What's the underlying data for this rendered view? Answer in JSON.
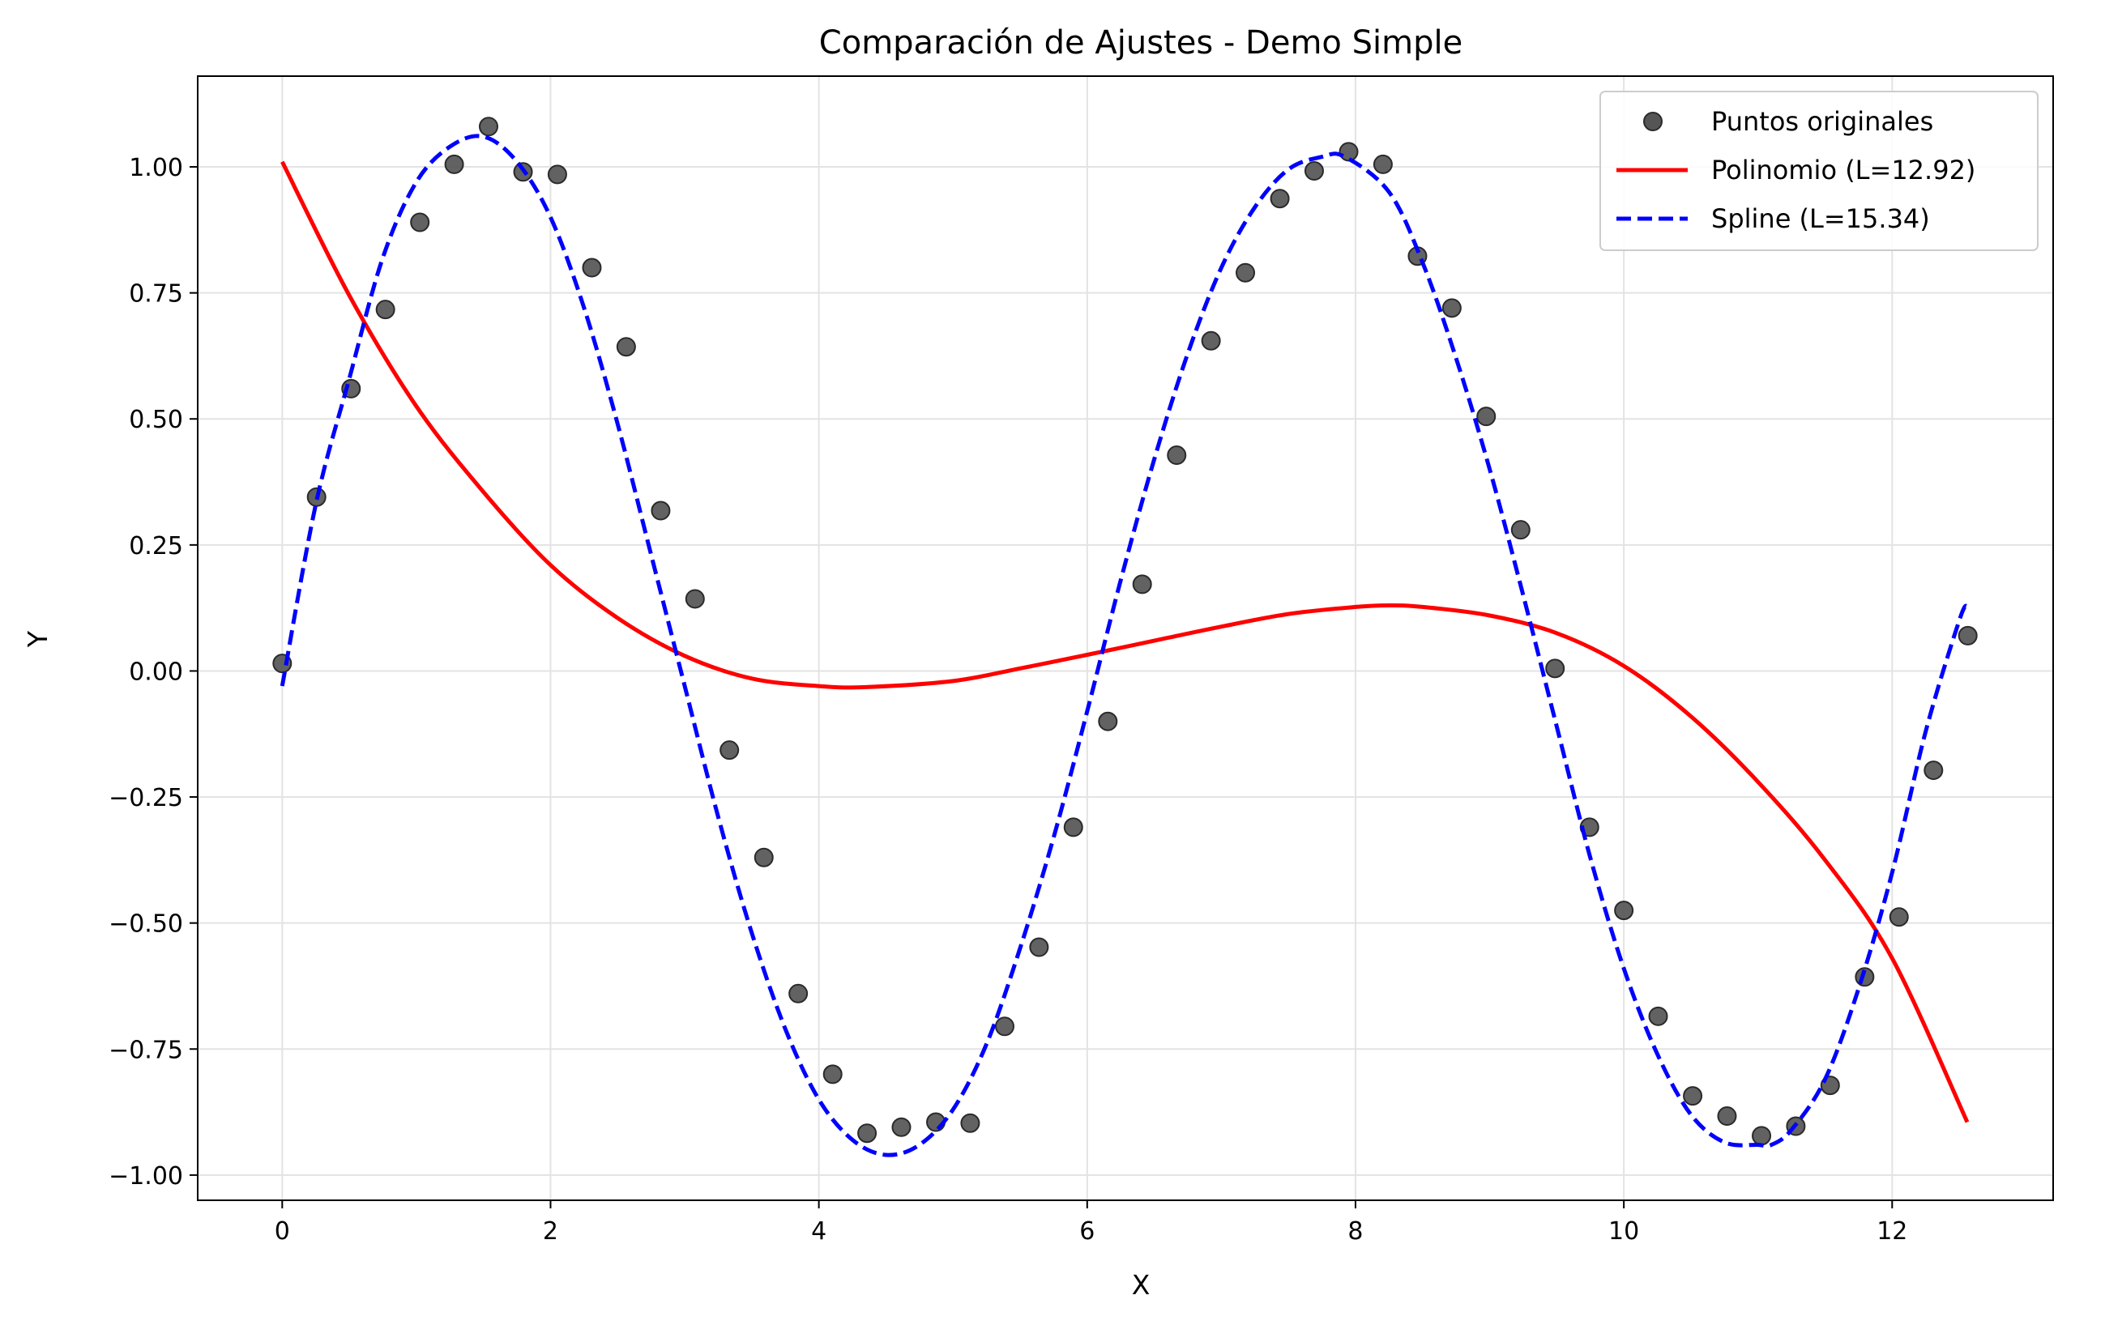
{
  "chart_data": {
    "type": "scatter",
    "title": "Comparación de Ajustes - Demo Simple",
    "xlabel": "X",
    "ylabel": "Y",
    "xlim": [
      -0.63,
      13.2
    ],
    "ylim": [
      -1.05,
      1.18
    ],
    "xticks": [
      0,
      2,
      4,
      6,
      8,
      10,
      12
    ],
    "xtick_labels": [
      "0",
      "2",
      "4",
      "6",
      "8",
      "10",
      "12"
    ],
    "yticks": [
      1.0,
      0.75,
      0.5,
      0.25,
      0.0,
      -0.25,
      -0.5,
      -0.75,
      -1.0
    ],
    "ytick_labels": [
      "1.00",
      "0.75",
      "0.50",
      "0.25",
      "0.00",
      "−0.25",
      "−0.50",
      "−0.75",
      "−1.00"
    ],
    "grid": true,
    "legend_position": "top-right",
    "series": [
      {
        "name": "Puntos originales",
        "kind": "scatter",
        "color": "#555555",
        "x": [
          0.0,
          0.256,
          0.513,
          0.769,
          1.026,
          1.282,
          1.538,
          1.795,
          2.051,
          2.308,
          2.564,
          2.821,
          3.077,
          3.333,
          3.59,
          3.846,
          4.103,
          4.359,
          4.615,
          4.872,
          5.128,
          5.385,
          5.641,
          5.897,
          6.154,
          6.41,
          6.667,
          6.923,
          7.179,
          7.436,
          7.692,
          7.949,
          8.205,
          8.462,
          8.718,
          8.974,
          9.231,
          9.487,
          9.744,
          10.0,
          10.256,
          10.513,
          10.769,
          11.026,
          11.282,
          11.538,
          11.795,
          12.051,
          12.308,
          12.564
        ],
        "y": [
          0.015,
          0.345,
          0.56,
          0.717,
          0.89,
          1.005,
          1.08,
          0.99,
          0.985,
          0.8,
          0.643,
          0.318,
          0.143,
          -0.157,
          -0.37,
          -0.64,
          -0.8,
          -0.917,
          -0.905,
          -0.895,
          -0.897,
          -0.705,
          -0.548,
          -0.31,
          -0.1,
          0.172,
          0.428,
          0.655,
          0.79,
          0.937,
          0.992,
          1.03,
          1.005,
          0.823,
          0.72,
          0.505,
          0.28,
          0.005,
          -0.31,
          -0.475,
          -0.685,
          -0.843,
          -0.883,
          -0.922,
          -0.903,
          -0.822,
          -0.607,
          -0.488,
          -0.197,
          0.07
        ]
      },
      {
        "name": "Polinomio (L=12.92)",
        "kind": "line",
        "color": "#ff0000",
        "dash": "solid",
        "x": [
          0,
          0.5,
          1.0,
          1.5,
          2.0,
          2.5,
          3.0,
          3.5,
          4.0,
          4.35,
          5.0,
          5.5,
          6.0,
          6.5,
          7.0,
          7.5,
          8.0,
          8.25,
          8.5,
          9.0,
          9.5,
          10.0,
          10.5,
          11.0,
          11.5,
          12.0,
          12.56
        ],
        "y": [
          1.01,
          0.745,
          0.525,
          0.355,
          0.21,
          0.105,
          0.03,
          -0.015,
          -0.03,
          -0.032,
          -0.02,
          0.005,
          0.032,
          0.06,
          0.088,
          0.113,
          0.127,
          0.13,
          0.127,
          0.11,
          0.075,
          0.01,
          -0.09,
          -0.22,
          -0.375,
          -0.57,
          -0.895
        ]
      },
      {
        "name": "Spline (L=15.34)",
        "kind": "line",
        "color": "#0000ff",
        "dash": "dashed",
        "x": [
          0,
          0.25,
          0.5,
          0.75,
          1.0,
          1.25,
          1.5,
          1.75,
          2.0,
          2.25,
          2.5,
          2.75,
          3.0,
          3.25,
          3.5,
          3.75,
          4.0,
          4.25,
          4.5,
          4.75,
          5.0,
          5.25,
          5.5,
          5.75,
          6.0,
          6.25,
          6.5,
          6.75,
          7.0,
          7.25,
          7.5,
          7.75,
          7.92,
          8.25,
          8.5,
          8.75,
          9.0,
          9.25,
          9.5,
          9.75,
          10.0,
          10.25,
          10.5,
          10.75,
          11.0,
          11.1,
          11.25,
          11.5,
          11.75,
          12.0,
          12.25,
          12.5,
          12.56
        ],
        "y": [
          -0.03,
          0.33,
          0.58,
          0.82,
          0.97,
          1.04,
          1.06,
          1.01,
          0.9,
          0.72,
          0.49,
          0.23,
          -0.03,
          -0.29,
          -0.52,
          -0.71,
          -0.85,
          -0.93,
          -0.96,
          -0.94,
          -0.87,
          -0.74,
          -0.55,
          -0.33,
          -0.08,
          0.18,
          0.42,
          0.63,
          0.8,
          0.92,
          0.995,
          1.02,
          1.02,
          0.95,
          0.81,
          0.62,
          0.4,
          0.15,
          -0.11,
          -0.37,
          -0.59,
          -0.76,
          -0.88,
          -0.935,
          -0.94,
          -0.94,
          -0.91,
          -0.81,
          -0.63,
          -0.4,
          -0.12,
          0.1,
          0.13
        ]
      }
    ]
  }
}
